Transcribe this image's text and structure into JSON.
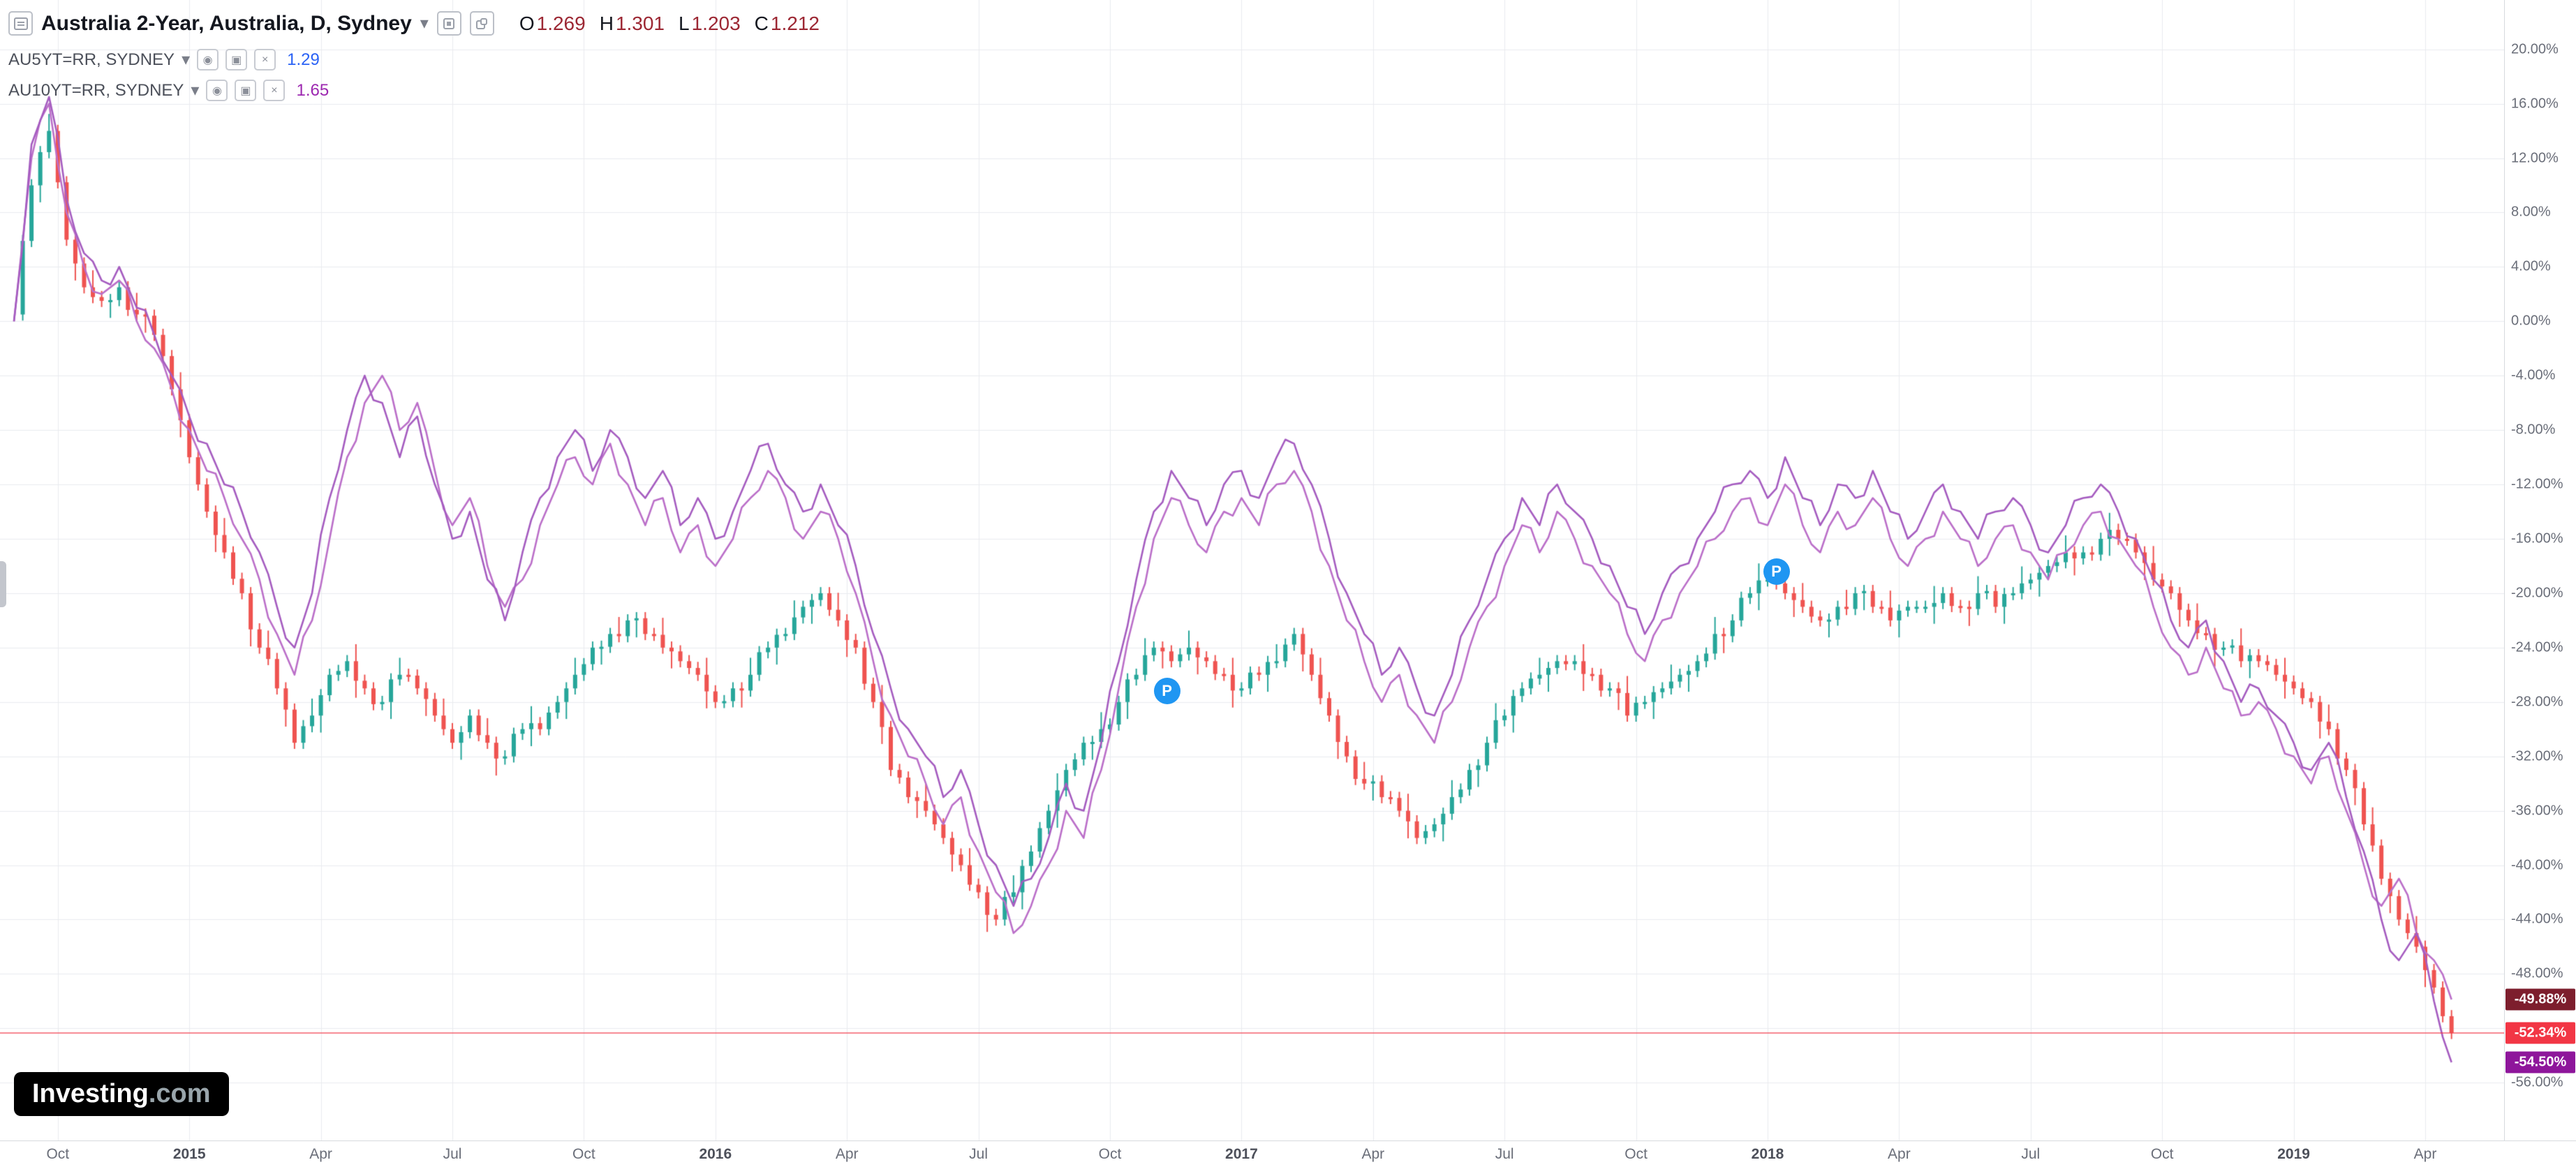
{
  "header": {
    "title": "Australia 2-Year, Australia, D, Sydney",
    "ohlc": [
      {
        "label": "O",
        "value": "1.269"
      },
      {
        "label": "H",
        "value": "1.301"
      },
      {
        "label": "L",
        "value": "1.203"
      },
      {
        "label": "C",
        "value": "1.212"
      }
    ]
  },
  "legend": [
    {
      "name": "AU5YT=RR, SYDNEY",
      "value": "1.29",
      "value_color": "#2a62f5"
    },
    {
      "name": "AU10YT=RR, SYDNEY",
      "value": "1.65",
      "value_color": "#9c27b0"
    }
  ],
  "watermark": {
    "brand": "Investing",
    "suffix": ".com"
  },
  "chart_data": {
    "type": "line",
    "title": "Australia 2-Year, Australia, D, Sydney",
    "subtitle": "Daily percent-change comparison of AU 2Y (candles) vs AU5YT=RR and AU10YT=RR overlays",
    "x_unit": "months from first bar (late Sep 2014) to May 2019",
    "t_step_months": 0.4,
    "ylim": [
      -60.5,
      23.5
    ],
    "grid": true,
    "grid_color": "#e9ebef",
    "axis_text_color": "#6a6e79",
    "legend_position": "top-left",
    "y_ticks": [
      "20.00%",
      "16.00%",
      "12.00%",
      "8.00%",
      "4.00%",
      "0.00%",
      "-4.00%",
      "-8.00%",
      "-12.00%",
      "-16.00%",
      "-20.00%",
      "-24.00%",
      "-28.00%",
      "-32.00%",
      "-36.00%",
      "-40.00%",
      "-44.00%",
      "-48.00%",
      "-52.00%",
      "-56.00%"
    ],
    "x_ticks": [
      {
        "label": "Oct",
        "m": 0
      },
      {
        "label": "2015",
        "m": 3,
        "year": true
      },
      {
        "label": "Apr",
        "m": 6
      },
      {
        "label": "Jul",
        "m": 9
      },
      {
        "label": "Oct",
        "m": 12
      },
      {
        "label": "2016",
        "m": 15,
        "year": true
      },
      {
        "label": "Apr",
        "m": 18
      },
      {
        "label": "Jul",
        "m": 21
      },
      {
        "label": "Oct",
        "m": 24
      },
      {
        "label": "2017",
        "m": 27,
        "year": true
      },
      {
        "label": "Apr",
        "m": 30
      },
      {
        "label": "Jul",
        "m": 33
      },
      {
        "label": "Oct",
        "m": 36
      },
      {
        "label": "2018",
        "m": 39,
        "year": true
      },
      {
        "label": "Apr",
        "m": 42
      },
      {
        "label": "Jul",
        "m": 45
      },
      {
        "label": "Oct",
        "m": 48
      },
      {
        "label": "2019",
        "m": 51,
        "year": true
      },
      {
        "label": "Apr",
        "m": 54
      }
    ],
    "series": [
      {
        "name": "Australia 2-Year (% change, candles)",
        "style": "candlestick",
        "up_color": "#26a69a",
        "down_color": "#ef5350",
        "last_pct": -52.34,
        "closes_pct": [
          0.5,
          10,
          14,
          6,
          2.5,
          1.5,
          2.5,
          0.5,
          -1,
          -5,
          -10,
          -14,
          -17,
          -20,
          -24,
          -27,
          -31,
          -29,
          -26,
          -25,
          -27,
          -28,
          -26,
          -27,
          -29,
          -31,
          -29,
          -31,
          -32,
          -30,
          -30,
          -28,
          -26,
          -24,
          -23,
          -22,
          -23,
          -24,
          -25,
          -26,
          -28,
          -27,
          -26,
          -24,
          -23,
          -21,
          -20,
          -22,
          -24,
          -28,
          -33,
          -35,
          -36,
          -38,
          -40,
          -42,
          -44,
          -42,
          -39,
          -36,
          -33,
          -31,
          -30,
          -28,
          -26,
          -24,
          -25,
          -24,
          -25,
          -26,
          -27,
          -26,
          -25,
          -23,
          -26,
          -29,
          -32,
          -34,
          -35,
          -36,
          -38,
          -37,
          -35,
          -33,
          -31,
          -29,
          -27,
          -26,
          -25,
          -25,
          -26,
          -27,
          -29,
          -28,
          -27,
          -26,
          -25,
          -23,
          -22,
          -20,
          -19,
          -20,
          -21,
          -22,
          -21,
          -20,
          -21,
          -22,
          -21,
          -21,
          -20,
          -21,
          -20,
          -21,
          -20,
          -19,
          -18,
          -17,
          -17,
          -16,
          -16,
          -17,
          -19,
          -20,
          -22,
          -23,
          -24,
          -25,
          -25,
          -26,
          -27,
          -28,
          -30,
          -33,
          -37,
          -41,
          -44,
          -46,
          -49,
          -52.34
        ]
      },
      {
        "name": "AU5YT=RR, SYDNEY (% change)",
        "style": "line",
        "color": "#bb6fc9",
        "last_pct": -49.88,
        "values_pct": [
          0,
          12,
          16,
          8,
          4,
          2,
          3,
          0,
          -2,
          -5,
          -8,
          -11,
          -13,
          -16,
          -19,
          -23,
          -26,
          -22,
          -16,
          -10,
          -6,
          -4,
          -8,
          -6,
          -11,
          -15,
          -13,
          -18,
          -21,
          -19,
          -15,
          -12,
          -10,
          -12,
          -9,
          -12,
          -15,
          -13,
          -17,
          -15,
          -18,
          -16,
          -13,
          -11,
          -13,
          -16,
          -14,
          -16,
          -20,
          -25,
          -29,
          -32,
          -34,
          -37,
          -35,
          -39,
          -42,
          -45,
          -43,
          -40,
          -36,
          -38,
          -33,
          -27,
          -21,
          -16,
          -13,
          -15,
          -17,
          -14,
          -13,
          -15,
          -12,
          -11,
          -14,
          -18,
          -22,
          -25,
          -28,
          -26,
          -29,
          -31,
          -28,
          -24,
          -21,
          -18,
          -15,
          -17,
          -14,
          -16,
          -18,
          -20,
          -23,
          -25,
          -22,
          -20,
          -18,
          -16,
          -14,
          -13,
          -15,
          -12,
          -15,
          -17,
          -14,
          -15,
          -13,
          -16,
          -18,
          -16,
          -14,
          -16,
          -18,
          -16,
          -15,
          -17,
          -19,
          -17,
          -15,
          -14,
          -16,
          -18,
          -21,
          -24,
          -26,
          -24,
          -27,
          -29,
          -28,
          -30,
          -32,
          -34,
          -32,
          -36,
          -40,
          -43,
          -41,
          -45,
          -47,
          -49.88
        ]
      },
      {
        "name": "AU10YT=RR, SYDNEY (% change)",
        "style": "line",
        "color": "#a55cc0",
        "last_pct": -54.5,
        "values_pct": [
          0,
          13,
          16.5,
          9,
          5,
          3,
          4,
          1,
          -1,
          -4,
          -7,
          -9,
          -12,
          -14,
          -17,
          -21,
          -24,
          -20,
          -13,
          -8,
          -4,
          -6,
          -10,
          -7,
          -12,
          -16,
          -14,
          -19,
          -22,
          -17,
          -13,
          -10,
          -8,
          -11,
          -8,
          -10,
          -13,
          -11,
          -15,
          -13,
          -16,
          -14,
          -11,
          -9,
          -12,
          -14,
          -12,
          -15,
          -18,
          -23,
          -27,
          -30,
          -32,
          -35,
          -33,
          -37,
          -40,
          -43,
          -41,
          -38,
          -34,
          -36,
          -31,
          -25,
          -19,
          -14,
          -11,
          -13,
          -15,
          -12,
          -11,
          -13,
          -10,
          -9,
          -12,
          -16,
          -20,
          -23,
          -26,
          -24,
          -27,
          -29,
          -26,
          -22,
          -19,
          -16,
          -13,
          -15,
          -12,
          -14,
          -16,
          -18,
          -21,
          -23,
          -20,
          -18,
          -16,
          -14,
          -12,
          -11,
          -13,
          -10,
          -13,
          -15,
          -12,
          -13,
          -11,
          -14,
          -16,
          -14,
          -12,
          -14,
          -16,
          -14,
          -13,
          -15,
          -17,
          -15,
          -13,
          -12,
          -14,
          -16,
          -19,
          -22,
          -24,
          -22,
          -25,
          -28,
          -27,
          -29,
          -31,
          -33,
          -31,
          -35,
          -39,
          -44,
          -47,
          -45,
          -50,
          -54.5
        ]
      }
    ],
    "markers": [
      {
        "label": "P",
        "t": 26.3,
        "value": -27.2
      },
      {
        "label": "P",
        "t": 40.2,
        "value": -18.4
      }
    ],
    "current_price_line": {
      "value": -52.34,
      "color": "#f23645"
    },
    "last_value_badges": [
      {
        "label": "-49.88%",
        "value": -49.88,
        "color": "#7d1e2d"
      },
      {
        "label": "-52.34%",
        "value": -52.34,
        "color": "#f23645"
      },
      {
        "label": "-54.50%",
        "value": -54.5,
        "color": "#8e169b"
      }
    ]
  }
}
